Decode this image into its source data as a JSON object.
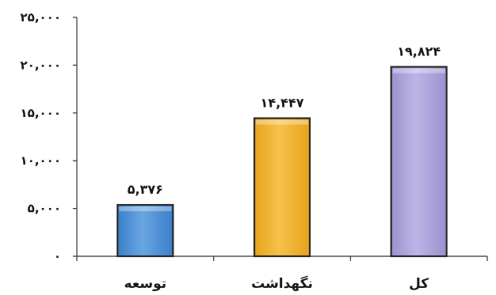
{
  "chart_data": {
    "type": "bar",
    "categories": [
      "توسعه",
      "نگهداشت",
      "کل"
    ],
    "values": [
      5376,
      14447,
      19824
    ],
    "value_labels": [
      "۵,۳۷۶",
      "۱۴,۴۴۷",
      "۱۹,۸۲۴"
    ],
    "ylim": [
      0,
      25000
    ],
    "y_ticks": [
      0,
      5000,
      10000,
      15000,
      20000,
      25000
    ],
    "y_tick_labels": [
      "۰",
      "۵,۰۰۰",
      "۱۰,۰۰۰",
      "۱۵,۰۰۰",
      "۲۰,۰۰۰",
      "۲۵,۰۰۰"
    ],
    "colors": [
      "#3a7fc8",
      "#e8a21c",
      "#9b91cf"
    ],
    "colors_light": [
      "#6aa6e2",
      "#f5c24a",
      "#bdb5e6"
    ],
    "grid": false,
    "legend": "none",
    "title": "",
    "xlabel": "",
    "ylabel": ""
  }
}
